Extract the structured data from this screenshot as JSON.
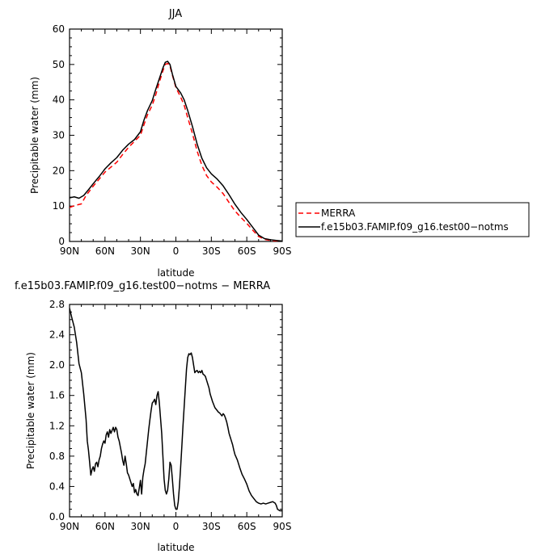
{
  "chart_data": [
    {
      "type": "line",
      "title": "JJA",
      "xlabel": "latitude",
      "ylabel": "Precipitable water (mm)",
      "xlim": [
        90,
        -90
      ],
      "ylim": [
        0,
        60
      ],
      "x_ticks": [
        90,
        60,
        30,
        0,
        -30,
        -60,
        -90
      ],
      "x_tick_labels": [
        "90N",
        "60N",
        "30N",
        "0",
        "30S",
        "60S",
        "90S"
      ],
      "y_ticks": [
        0,
        10,
        20,
        30,
        40,
        50,
        60
      ],
      "y_tick_labels": [
        "0",
        "10",
        "20",
        "30",
        "40",
        "50",
        "60"
      ],
      "grid": false,
      "legend": "right-outside",
      "series": [
        {
          "name": "MERRA",
          "color": "#ff0000",
          "style": "dashed",
          "points": [
            [
              90,
              9.6
            ],
            [
              85,
              10.2
            ],
            [
              80,
              10.6
            ],
            [
              76,
              13.0
            ],
            [
              70,
              15.6
            ],
            [
              65,
              17.6
            ],
            [
              60,
              19.6
            ],
            [
              55,
              21.0
            ],
            [
              50,
              22.4
            ],
            [
              45,
              24.6
            ],
            [
              40,
              26.6
            ],
            [
              35,
              28.3
            ],
            [
              30,
              30.0
            ],
            [
              27,
              33.0
            ],
            [
              24,
              35.8
            ],
            [
              20,
              38.5
            ],
            [
              17,
              41.5
            ],
            [
              14,
              45.0
            ],
            [
              11,
              48.2
            ],
            [
              9,
              50.0
            ],
            [
              7,
              50.3
            ],
            [
              5,
              49.5
            ],
            [
              3,
              47.0
            ],
            [
              0,
              43.5
            ],
            [
              -4,
              40.8
            ],
            [
              -7,
              38.5
            ],
            [
              -10,
              35.0
            ],
            [
              -14,
              30.5
            ],
            [
              -18,
              25.5
            ],
            [
              -22,
              21.5
            ],
            [
              -26,
              18.6
            ],
            [
              -30,
              16.8
            ],
            [
              -35,
              15.3
            ],
            [
              -40,
              13.5
            ],
            [
              -45,
              11.0
            ],
            [
              -50,
              8.6
            ],
            [
              -55,
              6.8
            ],
            [
              -60,
              5.1
            ],
            [
              -65,
              3.2
            ],
            [
              -70,
              1.4
            ],
            [
              -75,
              0.6
            ],
            [
              -80,
              0.3
            ],
            [
              -85,
              0.1
            ],
            [
              -90,
              0.0
            ]
          ]
        },
        {
          "name": "f.e15b03.FAMIP.f09_g16.test00−notms",
          "color": "#000000",
          "style": "solid",
          "points": [
            [
              90,
              12.3
            ],
            [
              86,
              12.6
            ],
            [
              82,
              12.2
            ],
            [
              78,
              13.0
            ],
            [
              74,
              14.6
            ],
            [
              70,
              16.3
            ],
            [
              65,
              18.3
            ],
            [
              60,
              20.5
            ],
            [
              55,
              22.2
            ],
            [
              50,
              23.7
            ],
            [
              45,
              25.8
            ],
            [
              40,
              27.5
            ],
            [
              35,
              28.8
            ],
            [
              30,
              31.0
            ],
            [
              27,
              34.3
            ],
            [
              24,
              37.0
            ],
            [
              20,
              39.8
            ],
            [
              17,
              43.0
            ],
            [
              14,
              46.0
            ],
            [
              11,
              49.0
            ],
            [
              9,
              50.6
            ],
            [
              7,
              50.9
            ],
            [
              5,
              50.0
            ],
            [
              3,
              47.3
            ],
            [
              0,
              43.8
            ],
            [
              -4,
              42.0
            ],
            [
              -7,
              40.0
            ],
            [
              -10,
              37.0
            ],
            [
              -14,
              32.5
            ],
            [
              -18,
              27.5
            ],
            [
              -22,
              23.5
            ],
            [
              -26,
              20.8
            ],
            [
              -30,
              19.1
            ],
            [
              -35,
              17.6
            ],
            [
              -40,
              15.7
            ],
            [
              -45,
              13.2
            ],
            [
              -50,
              10.5
            ],
            [
              -55,
              8.2
            ],
            [
              -60,
              6.2
            ],
            [
              -65,
              4.0
            ],
            [
              -70,
              1.8
            ],
            [
              -75,
              0.8
            ],
            [
              -80,
              0.5
            ],
            [
              -85,
              0.3
            ],
            [
              -90,
              0.1
            ]
          ]
        }
      ]
    },
    {
      "type": "line",
      "title": "f.e15b03.FAMIP.f09_g16.test00−notms − MERRA",
      "xlabel": "latitude",
      "ylabel": "Precipitable water (mm)",
      "xlim": [
        90,
        -90
      ],
      "ylim": [
        0,
        2.8
      ],
      "x_ticks": [
        90,
        60,
        30,
        0,
        -30,
        -60,
        -90
      ],
      "x_tick_labels": [
        "90N",
        "60N",
        "30N",
        "0",
        "30S",
        "60S",
        "90S"
      ],
      "y_ticks": [
        0,
        0.4,
        0.8,
        1.2,
        1.6,
        2.0,
        2.4,
        2.8
      ],
      "y_tick_labels": [
        "0.0",
        "0.4",
        "0.8",
        "1.2",
        "1.6",
        "2.0",
        "2.4",
        "2.8"
      ],
      "grid": false,
      "series": [
        {
          "color": "#000000",
          "style": "solid",
          "points": [
            [
              90,
              2.75
            ],
            [
              88,
              2.62
            ],
            [
              86,
              2.5
            ],
            [
              84,
              2.3
            ],
            [
              82,
              2.02
            ],
            [
              80,
              1.9
            ],
            [
              78,
              1.62
            ],
            [
              76,
              1.28
            ],
            [
              75,
              1.0
            ],
            [
              74,
              0.88
            ],
            [
              73,
              0.72
            ],
            [
              72,
              0.55
            ],
            [
              71,
              0.62
            ],
            [
              70,
              0.66
            ],
            [
              69,
              0.6
            ],
            [
              68,
              0.7
            ],
            [
              67,
              0.72
            ],
            [
              66,
              0.66
            ],
            [
              65,
              0.75
            ],
            [
              64,
              0.8
            ],
            [
              63,
              0.9
            ],
            [
              62,
              0.96
            ],
            [
              61,
              1.0
            ],
            [
              60,
              0.97
            ],
            [
              59,
              1.08
            ],
            [
              58,
              1.12
            ],
            [
              57,
              1.05
            ],
            [
              56,
              1.15
            ],
            [
              55,
              1.1
            ],
            [
              54,
              1.14
            ],
            [
              53,
              1.18
            ],
            [
              52,
              1.12
            ],
            [
              51,
              1.18
            ],
            [
              50,
              1.15
            ],
            [
              49,
              1.05
            ],
            [
              48,
              1.0
            ],
            [
              47,
              0.92
            ],
            [
              46,
              0.84
            ],
            [
              45,
              0.74
            ],
            [
              44,
              0.68
            ],
            [
              43,
              0.8
            ],
            [
              42,
              0.7
            ],
            [
              41,
              0.58
            ],
            [
              40,
              0.55
            ],
            [
              39,
              0.5
            ],
            [
              38,
              0.45
            ],
            [
              37,
              0.4
            ],
            [
              36,
              0.44
            ],
            [
              35,
              0.32
            ],
            [
              34,
              0.36
            ],
            [
              33,
              0.3
            ],
            [
              32,
              0.28
            ],
            [
              31,
              0.38
            ],
            [
              30,
              0.48
            ],
            [
              29,
              0.3
            ],
            [
              28,
              0.52
            ],
            [
              27,
              0.62
            ],
            [
              26,
              0.7
            ],
            [
              25,
              0.85
            ],
            [
              24,
              1.0
            ],
            [
              23,
              1.15
            ],
            [
              22,
              1.28
            ],
            [
              21,
              1.4
            ],
            [
              20,
              1.5
            ],
            [
              19,
              1.52
            ],
            [
              18,
              1.55
            ],
            [
              17,
              1.48
            ],
            [
              16,
              1.6
            ],
            [
              15,
              1.65
            ],
            [
              14,
              1.5
            ],
            [
              13,
              1.3
            ],
            [
              12,
              1.1
            ],
            [
              11,
              0.8
            ],
            [
              10,
              0.5
            ],
            [
              9,
              0.35
            ],
            [
              8,
              0.3
            ],
            [
              7,
              0.35
            ],
            [
              6,
              0.5
            ],
            [
              5,
              0.72
            ],
            [
              4,
              0.68
            ],
            [
              3,
              0.5
            ],
            [
              2,
              0.3
            ],
            [
              1,
              0.15
            ],
            [
              0,
              0.1
            ],
            [
              -1,
              0.1
            ],
            [
              -2,
              0.2
            ],
            [
              -3,
              0.4
            ],
            [
              -4,
              0.65
            ],
            [
              -5,
              0.92
            ],
            [
              -6,
              1.2
            ],
            [
              -7,
              1.45
            ],
            [
              -8,
              1.7
            ],
            [
              -9,
              1.95
            ],
            [
              -10,
              2.1
            ],
            [
              -11,
              2.15
            ],
            [
              -12,
              2.14
            ],
            [
              -13,
              2.16
            ],
            [
              -14,
              2.1
            ],
            [
              -15,
              2.0
            ],
            [
              -16,
              1.9
            ],
            [
              -17,
              1.92
            ],
            [
              -18,
              1.93
            ],
            [
              -19,
              1.9
            ],
            [
              -20,
              1.92
            ],
            [
              -21,
              1.9
            ],
            [
              -22,
              1.93
            ],
            [
              -23,
              1.88
            ],
            [
              -24,
              1.87
            ],
            [
              -25,
              1.85
            ],
            [
              -26,
              1.8
            ],
            [
              -27,
              1.75
            ],
            [
              -28,
              1.7
            ],
            [
              -29,
              1.62
            ],
            [
              -30,
              1.57
            ],
            [
              -31,
              1.52
            ],
            [
              -32,
              1.48
            ],
            [
              -33,
              1.44
            ],
            [
              -34,
              1.42
            ],
            [
              -35,
              1.4
            ],
            [
              -36,
              1.38
            ],
            [
              -37,
              1.37
            ],
            [
              -38,
              1.35
            ],
            [
              -39,
              1.33
            ],
            [
              -40,
              1.36
            ],
            [
              -41,
              1.34
            ],
            [
              -42,
              1.3
            ],
            [
              -43,
              1.25
            ],
            [
              -44,
              1.18
            ],
            [
              -45,
              1.1
            ],
            [
              -46,
              1.05
            ],
            [
              -47,
              1.0
            ],
            [
              -48,
              0.95
            ],
            [
              -49,
              0.88
            ],
            [
              -50,
              0.82
            ],
            [
              -52,
              0.75
            ],
            [
              -54,
              0.65
            ],
            [
              -56,
              0.56
            ],
            [
              -58,
              0.5
            ],
            [
              -60,
              0.43
            ],
            [
              -62,
              0.34
            ],
            [
              -64,
              0.28
            ],
            [
              -66,
              0.24
            ],
            [
              -68,
              0.2
            ],
            [
              -70,
              0.18
            ],
            [
              -72,
              0.17
            ],
            [
              -74,
              0.18
            ],
            [
              -76,
              0.17
            ],
            [
              -78,
              0.18
            ],
            [
              -80,
              0.19
            ],
            [
              -82,
              0.2
            ],
            [
              -84,
              0.18
            ],
            [
              -85,
              0.15
            ],
            [
              -86,
              0.1
            ],
            [
              -88,
              0.08
            ],
            [
              -90,
              0.08
            ]
          ]
        }
      ]
    }
  ]
}
